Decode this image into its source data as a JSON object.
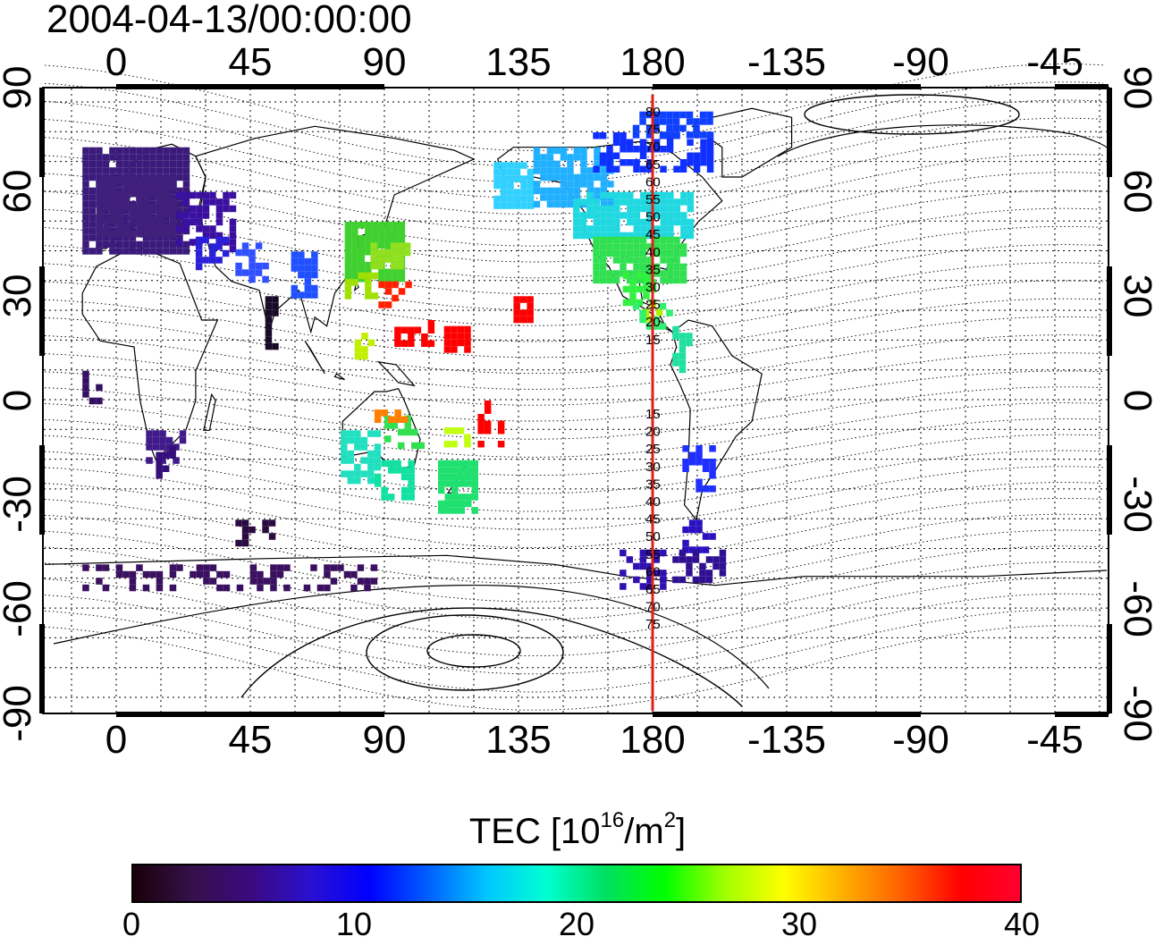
{
  "map": {
    "timestamp": "2004-04-13/00:00:00",
    "projection": "cylindrical, centered at 180 longitude",
    "variable": "TEC",
    "lon_ticks": [
      "0",
      "45",
      "90",
      "135",
      "180",
      "-135",
      "-90",
      "-45"
    ],
    "lat_ticks_left": [
      "90",
      "60",
      "30",
      "0",
      "-30",
      "-60",
      "-90"
    ],
    "lat_ticks_right": [
      "90",
      "60",
      "30",
      "0",
      "-30",
      "-60",
      "-90"
    ],
    "meridian_line": {
      "longitude": 180,
      "color": "#e0201a"
    },
    "mlat_labels_upper": [
      "80",
      "75",
      "70",
      "65",
      "60",
      "55",
      "50",
      "45",
      "40",
      "35",
      "30",
      "25",
      "20",
      "15"
    ],
    "mlat_labels_lower": [
      "15",
      "20",
      "25",
      "30",
      "35",
      "40",
      "45",
      "50",
      "55",
      "60",
      "65",
      "70",
      "75"
    ],
    "colorbar": {
      "min": 0,
      "max": 40,
      "ticks": [
        "0",
        "10",
        "20",
        "30",
        "40"
      ],
      "unit_prefix": "TEC  [10",
      "unit_exp1": "16",
      "unit_mid": "/m",
      "unit_exp2": "2",
      "unit_suffix": "]",
      "colors": [
        "#1a0008",
        "#35104a",
        "#3a0a80",
        "#2a10d0",
        "#0000ff",
        "#0060ff",
        "#00c8ff",
        "#00ffd0",
        "#00e060",
        "#00ff00",
        "#a0ff00",
        "#ffff00",
        "#ffb000",
        "#ff6000",
        "#ff0000",
        "#ff0030"
      ]
    }
  }
}
